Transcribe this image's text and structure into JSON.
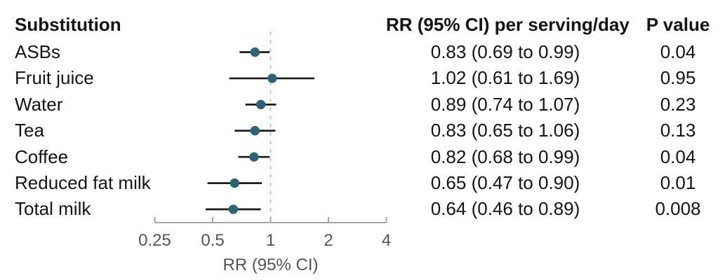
{
  "headers": {
    "substitution": "Substitution",
    "rr_column": "RR (95% CI) per serving/day",
    "p_column": "P value"
  },
  "chart_data": {
    "type": "scatter",
    "subtype": "forest-plot",
    "title": "",
    "xlabel": "RR (95% CI)",
    "ylabel": "",
    "x_scale": "log2",
    "x_range": [
      0.25,
      4
    ],
    "x_ticks": [
      "0.25",
      "0.5",
      "1",
      "2",
      "4"
    ],
    "x_tick_values": [
      0.25,
      0.5,
      1,
      2,
      4
    ],
    "reference_line_x": 1,
    "grid": "off",
    "rows": [
      {
        "label": "ASBs",
        "rr": 0.83,
        "ci_low": 0.69,
        "ci_high": 0.99,
        "rr_text": "0.83 (0.69 to 0.99)",
        "p_value": "0.04"
      },
      {
        "label": "Fruit juice",
        "rr": 1.02,
        "ci_low": 0.61,
        "ci_high": 1.69,
        "rr_text": "1.02 (0.61 to 1.69)",
        "p_value": "0.95"
      },
      {
        "label": "Water",
        "rr": 0.89,
        "ci_low": 0.74,
        "ci_high": 1.07,
        "rr_text": "0.89 (0.74 to 1.07)",
        "p_value": "0.23"
      },
      {
        "label": "Tea",
        "rr": 0.83,
        "ci_low": 0.65,
        "ci_high": 1.06,
        "rr_text": "0.83 (0.65 to 1.06)",
        "p_value": "0.13"
      },
      {
        "label": "Coffee",
        "rr": 0.82,
        "ci_low": 0.68,
        "ci_high": 0.99,
        "rr_text": "0.82 (0.68 to 0.99)",
        "p_value": "0.04"
      },
      {
        "label": "Reduced fat milk",
        "rr": 0.65,
        "ci_low": 0.47,
        "ci_high": 0.9,
        "rr_text": "0.65 (0.47 to 0.90)",
        "p_value": "0.01"
      },
      {
        "label": "Total milk",
        "rr": 0.64,
        "ci_low": 0.46,
        "ci_high": 0.89,
        "rr_text": "0.64 (0.46 to 0.89)",
        "p_value": "0.008"
      }
    ],
    "colors": {
      "point": "#2a6575",
      "ci_line": "#1a1a1a",
      "reference_line": "#c4c4c4",
      "axis": "#a6a6a6",
      "axis_text": "#545454",
      "text": "#141414"
    }
  }
}
